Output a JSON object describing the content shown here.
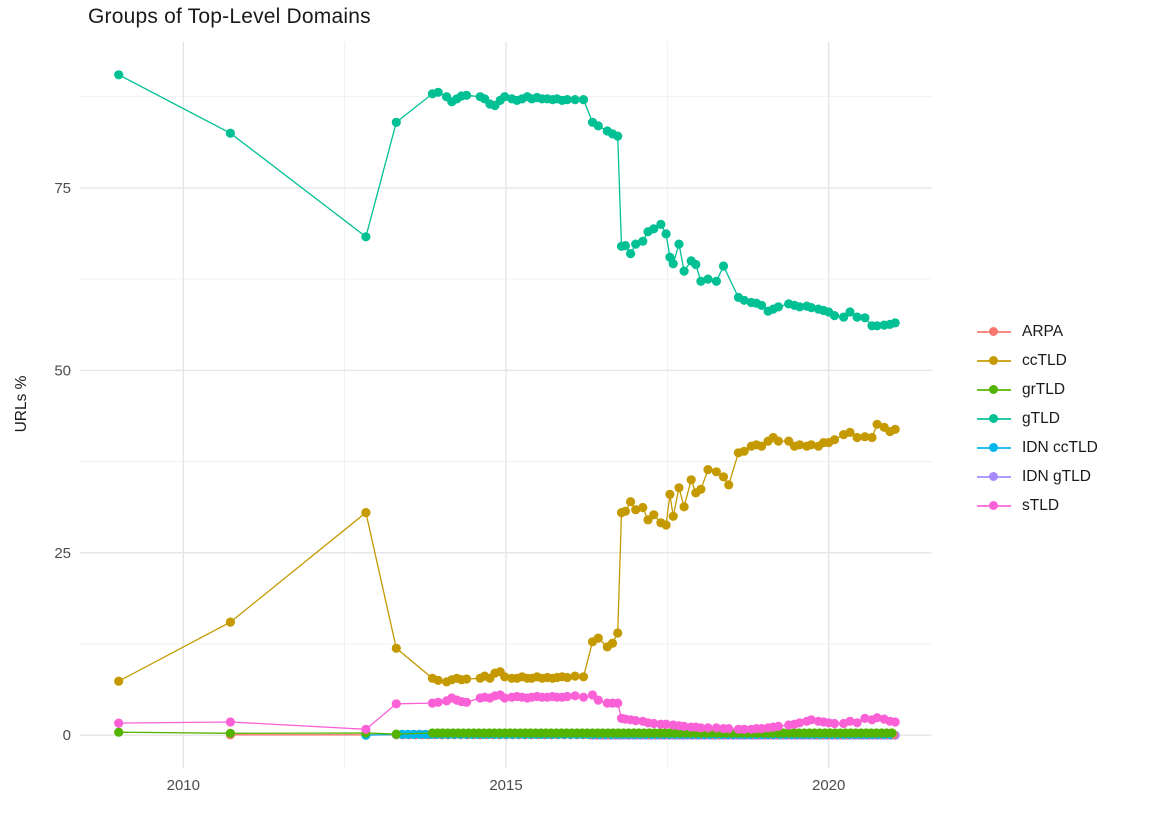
{
  "chart_data": {
    "type": "scatter",
    "title": "Groups of Top-Level Domains",
    "xlabel": "",
    "ylabel": "URLs %",
    "xlim": [
      2008.4,
      2021.6
    ],
    "ylim": [
      -4.5,
      95.0
    ],
    "x_ticks": [
      2010,
      2015,
      2020
    ],
    "x_tick_labels": [
      "2010",
      "2015",
      "2020"
    ],
    "x_minor_ticks": [
      2012.5,
      2017.5
    ],
    "y_ticks": [
      0,
      25,
      50,
      75
    ],
    "y_tick_labels": [
      "0",
      "25",
      "50",
      "75"
    ],
    "y_minor_ticks": [
      12.5,
      37.5,
      62.5,
      87.5
    ],
    "grid": true,
    "grid_major_color": "#e6e6e6",
    "grid_minor_color": "#f0f0f0",
    "legend_position": "right",
    "series": [
      {
        "name": "ARPA",
        "color": "#F8766D",
        "z": 2,
        "points": [
          [
            2010.73,
            0.05
          ],
          [
            2012.83,
            0.05
          ]
        ],
        "runs": [
          {
            "from": 2013.3,
            "to": 2021.03,
            "step": 0.1,
            "value": 0.05
          }
        ]
      },
      {
        "name": "ccTLD",
        "color": "#C49A00",
        "z": 6,
        "points": [
          [
            2009.0,
            7.4
          ],
          [
            2010.73,
            15.5
          ],
          [
            2012.83,
            30.5
          ],
          [
            2013.3,
            11.9
          ],
          [
            2013.86,
            7.8
          ],
          [
            2013.95,
            7.5
          ],
          [
            2014.08,
            7.3
          ],
          [
            2014.16,
            7.6
          ],
          [
            2014.24,
            7.8
          ],
          [
            2014.31,
            7.6
          ],
          [
            2014.39,
            7.7
          ],
          [
            2014.6,
            7.8
          ],
          [
            2014.67,
            8.1
          ],
          [
            2014.75,
            7.8
          ],
          [
            2014.83,
            8.5
          ],
          [
            2014.91,
            8.7
          ],
          [
            2014.98,
            8.0
          ],
          [
            2015.09,
            7.8
          ],
          [
            2015.17,
            7.8
          ],
          [
            2015.25,
            8.0
          ],
          [
            2015.33,
            7.8
          ],
          [
            2015.4,
            7.8
          ],
          [
            2015.48,
            8.0
          ],
          [
            2015.56,
            7.8
          ],
          [
            2015.64,
            7.9
          ],
          [
            2015.72,
            7.8
          ],
          [
            2015.79,
            7.9
          ],
          [
            2015.87,
            8.0
          ],
          [
            2015.95,
            7.9
          ],
          [
            2016.07,
            8.1
          ],
          [
            2016.2,
            8.0
          ],
          [
            2016.34,
            12.8
          ],
          [
            2016.43,
            13.3
          ],
          [
            2016.57,
            12.1
          ],
          [
            2016.65,
            12.6
          ],
          [
            2016.73,
            14.0
          ],
          [
            2016.79,
            30.5
          ],
          [
            2016.85,
            30.7
          ],
          [
            2016.93,
            32.0
          ],
          [
            2017.01,
            30.9
          ],
          [
            2017.12,
            31.2
          ],
          [
            2017.2,
            29.5
          ],
          [
            2017.29,
            30.2
          ],
          [
            2017.4,
            29.1
          ],
          [
            2017.48,
            28.8
          ],
          [
            2017.54,
            33.0
          ],
          [
            2017.59,
            30.0
          ],
          [
            2017.68,
            33.9
          ],
          [
            2017.76,
            31.3
          ],
          [
            2017.87,
            35.0
          ],
          [
            2017.94,
            33.2
          ],
          [
            2018.02,
            33.7
          ],
          [
            2018.13,
            36.4
          ],
          [
            2018.26,
            36.1
          ],
          [
            2018.37,
            35.4
          ],
          [
            2018.45,
            34.3
          ],
          [
            2018.6,
            38.7
          ],
          [
            2018.69,
            38.9
          ],
          [
            2018.8,
            39.6
          ],
          [
            2018.88,
            39.8
          ],
          [
            2018.96,
            39.6
          ],
          [
            2019.06,
            40.3
          ],
          [
            2019.14,
            40.8
          ],
          [
            2019.22,
            40.3
          ],
          [
            2019.38,
            40.3
          ],
          [
            2019.47,
            39.6
          ],
          [
            2019.55,
            39.8
          ],
          [
            2019.66,
            39.6
          ],
          [
            2019.73,
            39.8
          ],
          [
            2019.84,
            39.6
          ],
          [
            2019.92,
            40.1
          ],
          [
            2020.0,
            40.1
          ],
          [
            2020.09,
            40.5
          ],
          [
            2020.23,
            41.2
          ],
          [
            2020.33,
            41.5
          ],
          [
            2020.44,
            40.8
          ],
          [
            2020.56,
            40.9
          ],
          [
            2020.67,
            40.8
          ],
          [
            2020.75,
            42.6
          ],
          [
            2020.86,
            42.2
          ],
          [
            2020.95,
            41.6
          ],
          [
            2021.03,
            41.9
          ]
        ]
      },
      {
        "name": "grTLD",
        "color": "#53B400",
        "z": 4,
        "points": [
          [
            2009.0,
            0.4
          ],
          [
            2010.73,
            0.25
          ],
          [
            2012.83,
            0.3
          ],
          [
            2013.3,
            0.15
          ]
        ],
        "runs": [
          {
            "from": 2013.86,
            "to": 2021.03,
            "step": 0.08,
            "value": 0.3
          }
        ]
      },
      {
        "name": "gTLD",
        "color": "#00C094",
        "z": 5,
        "points": [
          [
            2009.0,
            90.5
          ],
          [
            2010.73,
            82.5
          ],
          [
            2012.83,
            68.3
          ],
          [
            2013.3,
            84.0
          ],
          [
            2013.86,
            87.9
          ],
          [
            2013.95,
            88.1
          ],
          [
            2014.08,
            87.5
          ],
          [
            2014.16,
            86.8
          ],
          [
            2014.24,
            87.2
          ],
          [
            2014.31,
            87.6
          ],
          [
            2014.39,
            87.7
          ],
          [
            2014.6,
            87.5
          ],
          [
            2014.67,
            87.2
          ],
          [
            2014.75,
            86.5
          ],
          [
            2014.83,
            86.3
          ],
          [
            2014.91,
            87.0
          ],
          [
            2014.98,
            87.5
          ],
          [
            2015.09,
            87.2
          ],
          [
            2015.17,
            87.0
          ],
          [
            2015.25,
            87.2
          ],
          [
            2015.33,
            87.5
          ],
          [
            2015.4,
            87.2
          ],
          [
            2015.48,
            87.4
          ],
          [
            2015.56,
            87.2
          ],
          [
            2015.64,
            87.2
          ],
          [
            2015.72,
            87.1
          ],
          [
            2015.79,
            87.2
          ],
          [
            2015.87,
            87.0
          ],
          [
            2015.95,
            87.1
          ],
          [
            2016.07,
            87.1
          ],
          [
            2016.2,
            87.1
          ],
          [
            2016.34,
            84.0
          ],
          [
            2016.43,
            83.5
          ],
          [
            2016.57,
            82.8
          ],
          [
            2016.65,
            82.4
          ],
          [
            2016.73,
            82.1
          ],
          [
            2016.79,
            67.0
          ],
          [
            2016.85,
            67.1
          ],
          [
            2016.93,
            66.0
          ],
          [
            2017.01,
            67.3
          ],
          [
            2017.12,
            67.7
          ],
          [
            2017.2,
            69.0
          ],
          [
            2017.29,
            69.4
          ],
          [
            2017.4,
            70.0
          ],
          [
            2017.48,
            68.7
          ],
          [
            2017.54,
            65.5
          ],
          [
            2017.59,
            64.6
          ],
          [
            2017.68,
            67.3
          ],
          [
            2017.76,
            63.6
          ],
          [
            2017.87,
            65.0
          ],
          [
            2017.94,
            64.5
          ],
          [
            2018.02,
            62.2
          ],
          [
            2018.13,
            62.5
          ],
          [
            2018.26,
            62.2
          ],
          [
            2018.37,
            64.3
          ],
          [
            2018.6,
            60.0
          ],
          [
            2018.69,
            59.6
          ],
          [
            2018.8,
            59.3
          ],
          [
            2018.88,
            59.2
          ],
          [
            2018.96,
            58.9
          ],
          [
            2019.06,
            58.1
          ],
          [
            2019.14,
            58.4
          ],
          [
            2019.22,
            58.7
          ],
          [
            2019.38,
            59.1
          ],
          [
            2019.47,
            58.9
          ],
          [
            2019.55,
            58.7
          ],
          [
            2019.66,
            58.8
          ],
          [
            2019.73,
            58.6
          ],
          [
            2019.84,
            58.4
          ],
          [
            2019.92,
            58.2
          ],
          [
            2020.0,
            58.0
          ],
          [
            2020.09,
            57.5
          ],
          [
            2020.23,
            57.3
          ],
          [
            2020.33,
            58.0
          ],
          [
            2020.44,
            57.3
          ],
          [
            2020.56,
            57.2
          ],
          [
            2020.67,
            56.1
          ],
          [
            2020.75,
            56.1
          ],
          [
            2020.86,
            56.2
          ],
          [
            2020.95,
            56.3
          ],
          [
            2021.03,
            56.5
          ]
        ]
      },
      {
        "name": "IDN ccTLD",
        "color": "#00B6EB",
        "z": 3,
        "points": [
          [
            2012.83,
            0.0
          ]
        ],
        "runs": [
          {
            "from": 2013.3,
            "to": 2021.03,
            "step": 0.09,
            "value": 0.1
          }
        ]
      },
      {
        "name": "IDN gTLD",
        "color": "#A58AFF",
        "z": 1,
        "points": [],
        "runs": [
          {
            "from": 2016.34,
            "to": 2021.03,
            "step": 0.07,
            "value": 0.0
          }
        ]
      },
      {
        "name": "sTLD",
        "color": "#FB61D7",
        "z": 7,
        "points": [
          [
            2009.0,
            1.65
          ],
          [
            2010.73,
            1.8
          ],
          [
            2012.83,
            0.8
          ],
          [
            2013.3,
            4.3
          ],
          [
            2013.86,
            4.4
          ],
          [
            2013.95,
            4.5
          ],
          [
            2014.08,
            4.7
          ],
          [
            2014.16,
            5.1
          ],
          [
            2014.24,
            4.8
          ],
          [
            2014.31,
            4.6
          ],
          [
            2014.39,
            4.5
          ],
          [
            2014.6,
            5.1
          ],
          [
            2014.67,
            5.2
          ],
          [
            2014.75,
            5.1
          ],
          [
            2014.83,
            5.4
          ],
          [
            2014.91,
            5.5
          ],
          [
            2014.98,
            5.1
          ],
          [
            2015.09,
            5.2
          ],
          [
            2015.17,
            5.3
          ],
          [
            2015.25,
            5.2
          ],
          [
            2015.33,
            5.1
          ],
          [
            2015.4,
            5.2
          ],
          [
            2015.48,
            5.3
          ],
          [
            2015.56,
            5.2
          ],
          [
            2015.64,
            5.2
          ],
          [
            2015.72,
            5.3
          ],
          [
            2015.79,
            5.2
          ],
          [
            2015.87,
            5.2
          ],
          [
            2015.95,
            5.3
          ],
          [
            2016.07,
            5.4
          ],
          [
            2016.2,
            5.2
          ],
          [
            2016.34,
            5.5
          ],
          [
            2016.43,
            4.8
          ],
          [
            2016.57,
            4.4
          ],
          [
            2016.65,
            4.4
          ],
          [
            2016.73,
            4.4
          ],
          [
            2016.79,
            2.3
          ],
          [
            2016.85,
            2.2
          ],
          [
            2016.93,
            2.1
          ],
          [
            2017.01,
            2.0
          ],
          [
            2017.12,
            1.9
          ],
          [
            2017.2,
            1.7
          ],
          [
            2017.29,
            1.6
          ],
          [
            2017.4,
            1.5
          ],
          [
            2017.48,
            1.5
          ],
          [
            2017.59,
            1.4
          ],
          [
            2017.68,
            1.3
          ],
          [
            2017.76,
            1.2
          ],
          [
            2017.87,
            1.1
          ],
          [
            2017.94,
            1.1
          ],
          [
            2018.02,
            1.0
          ],
          [
            2018.13,
            1.0
          ],
          [
            2018.26,
            1.0
          ],
          [
            2018.37,
            0.9
          ],
          [
            2018.45,
            0.9
          ],
          [
            2018.6,
            0.8
          ],
          [
            2018.69,
            0.8
          ],
          [
            2018.8,
            0.8
          ],
          [
            2018.88,
            0.9
          ],
          [
            2018.96,
            0.9
          ],
          [
            2019.06,
            1.0
          ],
          [
            2019.14,
            1.1
          ],
          [
            2019.22,
            1.2
          ],
          [
            2019.38,
            1.4
          ],
          [
            2019.47,
            1.5
          ],
          [
            2019.55,
            1.7
          ],
          [
            2019.66,
            1.9
          ],
          [
            2019.73,
            2.1
          ],
          [
            2019.84,
            1.9
          ],
          [
            2019.92,
            1.8
          ],
          [
            2020.0,
            1.7
          ],
          [
            2020.09,
            1.6
          ],
          [
            2020.23,
            1.6
          ],
          [
            2020.33,
            1.9
          ],
          [
            2020.44,
            1.7
          ],
          [
            2020.56,
            2.3
          ],
          [
            2020.67,
            2.1
          ],
          [
            2020.75,
            2.4
          ],
          [
            2020.86,
            2.2
          ],
          [
            2020.95,
            1.9
          ],
          [
            2021.03,
            1.8
          ]
        ]
      }
    ]
  }
}
